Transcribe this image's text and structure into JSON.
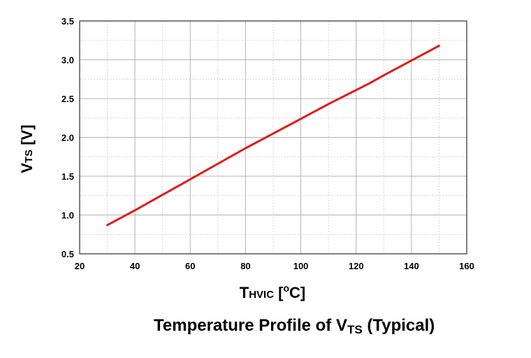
{
  "chart_data": {
    "type": "line",
    "x": [
      30,
      40,
      50,
      60,
      70,
      80,
      90,
      100,
      110,
      120,
      125,
      130,
      140,
      150
    ],
    "series": [
      {
        "values": [
          0.87,
          1.06,
          1.26,
          1.46,
          1.66,
          1.86,
          2.05,
          2.24,
          2.43,
          2.61,
          2.7,
          2.8,
          2.99,
          3.18
        ],
        "color": "#e01b1b"
      }
    ],
    "xlim": [
      20,
      160
    ],
    "ylim": [
      0.5,
      3.5
    ],
    "x_ticks": [
      "20",
      "40",
      "60",
      "80",
      "100",
      "120",
      "140",
      "160"
    ],
    "y_ticks": [
      "0.5",
      "1.0",
      "1.5",
      "2.0",
      "2.5",
      "3.0",
      "3.5"
    ],
    "grid": true,
    "xlabel": {
      "main": "T",
      "sub": "HVIC",
      "unit": " [",
      "sup": "o",
      "unit_end": "C]"
    },
    "ylabel": {
      "main": "V",
      "sub": "TS",
      "unit": " [V]"
    },
    "legend": "none"
  },
  "caption": {
    "prefix": "Temperature Profile of V",
    "sub": "TS",
    "suffix": " (Typical)"
  }
}
